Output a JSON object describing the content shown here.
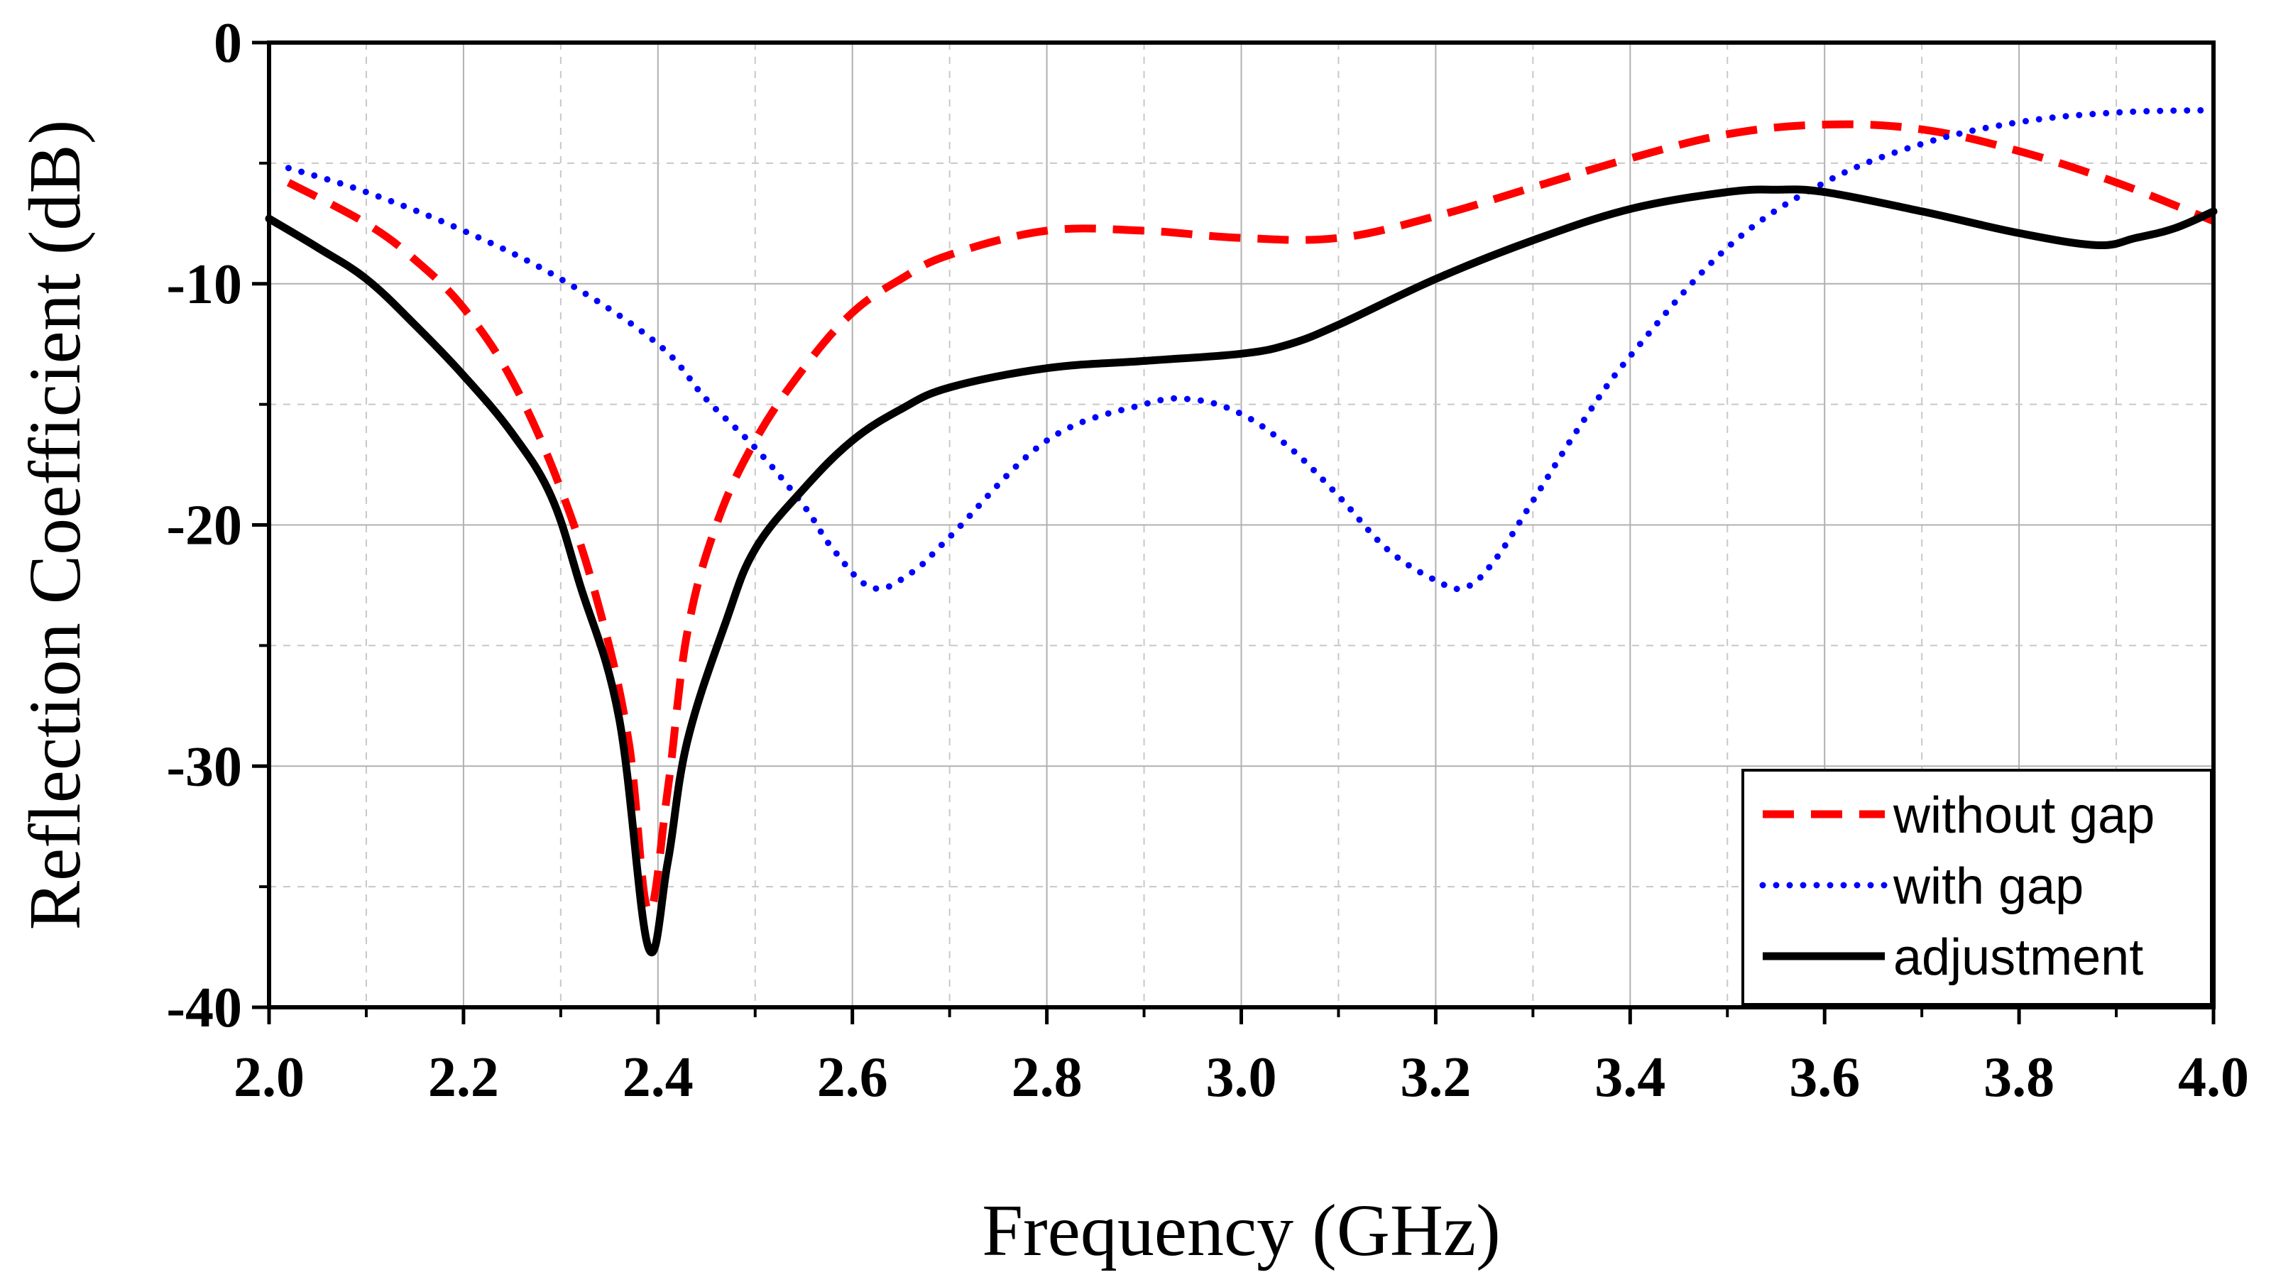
{
  "chart_data": {
    "type": "line",
    "title": "",
    "xlabel": "Frequency (GHz)",
    "ylabel": "Reflection Coefficient (dB)",
    "xlim": [
      2.0,
      4.0
    ],
    "ylim": [
      -40,
      0
    ],
    "x_major_ticks": [
      2.0,
      2.2,
      2.4,
      2.6,
      2.8,
      3.0,
      3.2,
      3.4,
      3.6,
      3.8,
      4.0
    ],
    "x_tick_labels": [
      "2.0",
      "2.2",
      "2.4",
      "2.6",
      "2.8",
      "3.0",
      "3.2",
      "3.4",
      "3.6",
      "3.8",
      "4.0"
    ],
    "y_major_ticks": [
      0,
      -10,
      -20,
      -30,
      -40
    ],
    "y_tick_labels": [
      "0",
      "-10",
      "-20",
      "-30",
      "-40"
    ],
    "grid": true,
    "legend_position": "bottom-right",
    "series": [
      {
        "name": "without gap",
        "color": "#ff0000",
        "style": "dashed",
        "x": [
          2.02,
          2.1,
          2.15,
          2.2,
          2.25,
          2.3,
          2.34,
          2.37,
          2.39,
          2.41,
          2.43,
          2.46,
          2.5,
          2.55,
          2.6,
          2.65,
          2.7,
          2.8,
          2.9,
          3.0,
          3.1,
          3.2,
          3.3,
          3.4,
          3.5,
          3.6,
          3.7,
          3.8,
          3.9,
          4.0
        ],
        "y": [
          -5.8,
          -7.5,
          -9.0,
          -11.0,
          -14.0,
          -18.5,
          -23.5,
          -29.0,
          -36.0,
          -31.0,
          -24.5,
          -20.0,
          -16.5,
          -13.5,
          -11.2,
          -9.8,
          -8.8,
          -7.8,
          -7.8,
          -8.1,
          -8.1,
          -7.2,
          -6.0,
          -4.8,
          -3.8,
          -3.4,
          -3.6,
          -4.5,
          -5.8,
          -7.4
        ]
      },
      {
        "name": "with gap",
        "color": "#0000ff",
        "style": "dotted",
        "x": [
          2.02,
          2.1,
          2.2,
          2.3,
          2.4,
          2.45,
          2.5,
          2.55,
          2.58,
          2.62,
          2.66,
          2.7,
          2.8,
          2.9,
          2.95,
          3.0,
          3.05,
          3.1,
          3.15,
          3.2,
          3.23,
          3.26,
          3.3,
          3.35,
          3.4,
          3.5,
          3.6,
          3.7,
          3.8,
          3.9,
          4.0
        ],
        "y": [
          -5.2,
          -6.2,
          -7.8,
          -9.8,
          -12.5,
          -14.8,
          -16.8,
          -19.2,
          -21.0,
          -22.6,
          -22.0,
          -20.5,
          -16.5,
          -15.0,
          -14.8,
          -15.4,
          -16.8,
          -18.8,
          -21.0,
          -22.3,
          -22.6,
          -21.5,
          -19.0,
          -15.8,
          -13.0,
          -8.5,
          -5.8,
          -4.2,
          -3.3,
          -2.9,
          -2.8
        ]
      },
      {
        "name": "adjustment",
        "color": "#000000",
        "style": "solid",
        "x": [
          2.0,
          2.05,
          2.1,
          2.15,
          2.2,
          2.25,
          2.29,
          2.32,
          2.36,
          2.39,
          2.41,
          2.43,
          2.47,
          2.5,
          2.55,
          2.6,
          2.65,
          2.7,
          2.8,
          2.9,
          3.0,
          3.05,
          3.1,
          3.2,
          3.3,
          3.4,
          3.5,
          3.55,
          3.6,
          3.7,
          3.8,
          3.88,
          3.92,
          3.96,
          4.0
        ],
        "y": [
          -7.3,
          -8.5,
          -9.8,
          -11.7,
          -13.8,
          -16.2,
          -18.8,
          -22.5,
          -28.0,
          -37.5,
          -34.0,
          -29.0,
          -24.0,
          -21.0,
          -18.5,
          -16.5,
          -15.2,
          -14.3,
          -13.5,
          -13.2,
          -12.9,
          -12.5,
          -11.7,
          -9.8,
          -8.2,
          -6.9,
          -6.2,
          -6.1,
          -6.2,
          -7.0,
          -7.9,
          -8.4,
          -8.1,
          -7.7,
          -7.0
        ]
      }
    ]
  }
}
